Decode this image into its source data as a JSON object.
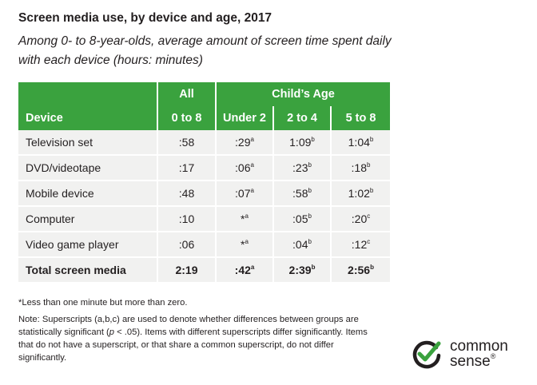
{
  "title": "Screen media use, by device and age, 2017",
  "subtitle": "Among 0- to 8-year-olds, average amount of screen time spent daily with each device (hours: minutes)",
  "table": {
    "header_group": {
      "all": "All",
      "childs_age": "Child’s Age"
    },
    "columns": {
      "device": "Device",
      "all_range": "0 to 8",
      "under2": "Under 2",
      "age2to4": "2 to 4",
      "age5to8": "5 to 8"
    },
    "rows": [
      {
        "device": "Television set",
        "all": ":58",
        "under2": ":29",
        "under2_sup": "a",
        "age2to4": "1:09",
        "age2to4_sup": "b",
        "age5to8": "1:04",
        "age5to8_sup": "b"
      },
      {
        "device": "DVD/videotape",
        "all": ":17",
        "under2": ":06",
        "under2_sup": "a",
        "age2to4": ":23",
        "age2to4_sup": "b",
        "age5to8": ":18",
        "age5to8_sup": "b"
      },
      {
        "device": "Mobile device",
        "all": ":48",
        "under2": ":07",
        "under2_sup": "a",
        "age2to4": ":58",
        "age2to4_sup": "b",
        "age5to8": "1:02",
        "age5to8_sup": "b"
      },
      {
        "device": "Computer",
        "all": ":10",
        "under2": "*",
        "under2_sup": "a",
        "age2to4": ":05",
        "age2to4_sup": "b",
        "age5to8": ":20",
        "age5to8_sup": "c"
      },
      {
        "device": "Video game player",
        "all": ":06",
        "under2": "*",
        "under2_sup": "a",
        "age2to4": ":04",
        "age2to4_sup": "b",
        "age5to8": ":12",
        "age5to8_sup": "c"
      }
    ],
    "total": {
      "device": "Total screen media",
      "all": "2:19",
      "under2": ":42",
      "under2_sup": "a",
      "age2to4": "2:39",
      "age2to4_sup": "b",
      "age5to8": "2:56",
      "age5to8_sup": "b"
    }
  },
  "footnote": "*Less than one minute but more than zero.",
  "note": {
    "part1": "Note: Superscripts (a,b,c) are used to denote whether differences between groups are statistically significant (",
    "p": "p",
    "part2": " < .05). Items with different superscripts differ significantly. Items that do not have a superscript, or that share a common superscript, do not differ significantly."
  },
  "logo": {
    "line1": "common",
    "line2": "sense",
    "mark": "®",
    "icon": "check-circle-icon",
    "accent": "#3aa23e"
  },
  "colors": {
    "header_green": "#3aa23e",
    "row_bg": "#f1f1f0"
  }
}
